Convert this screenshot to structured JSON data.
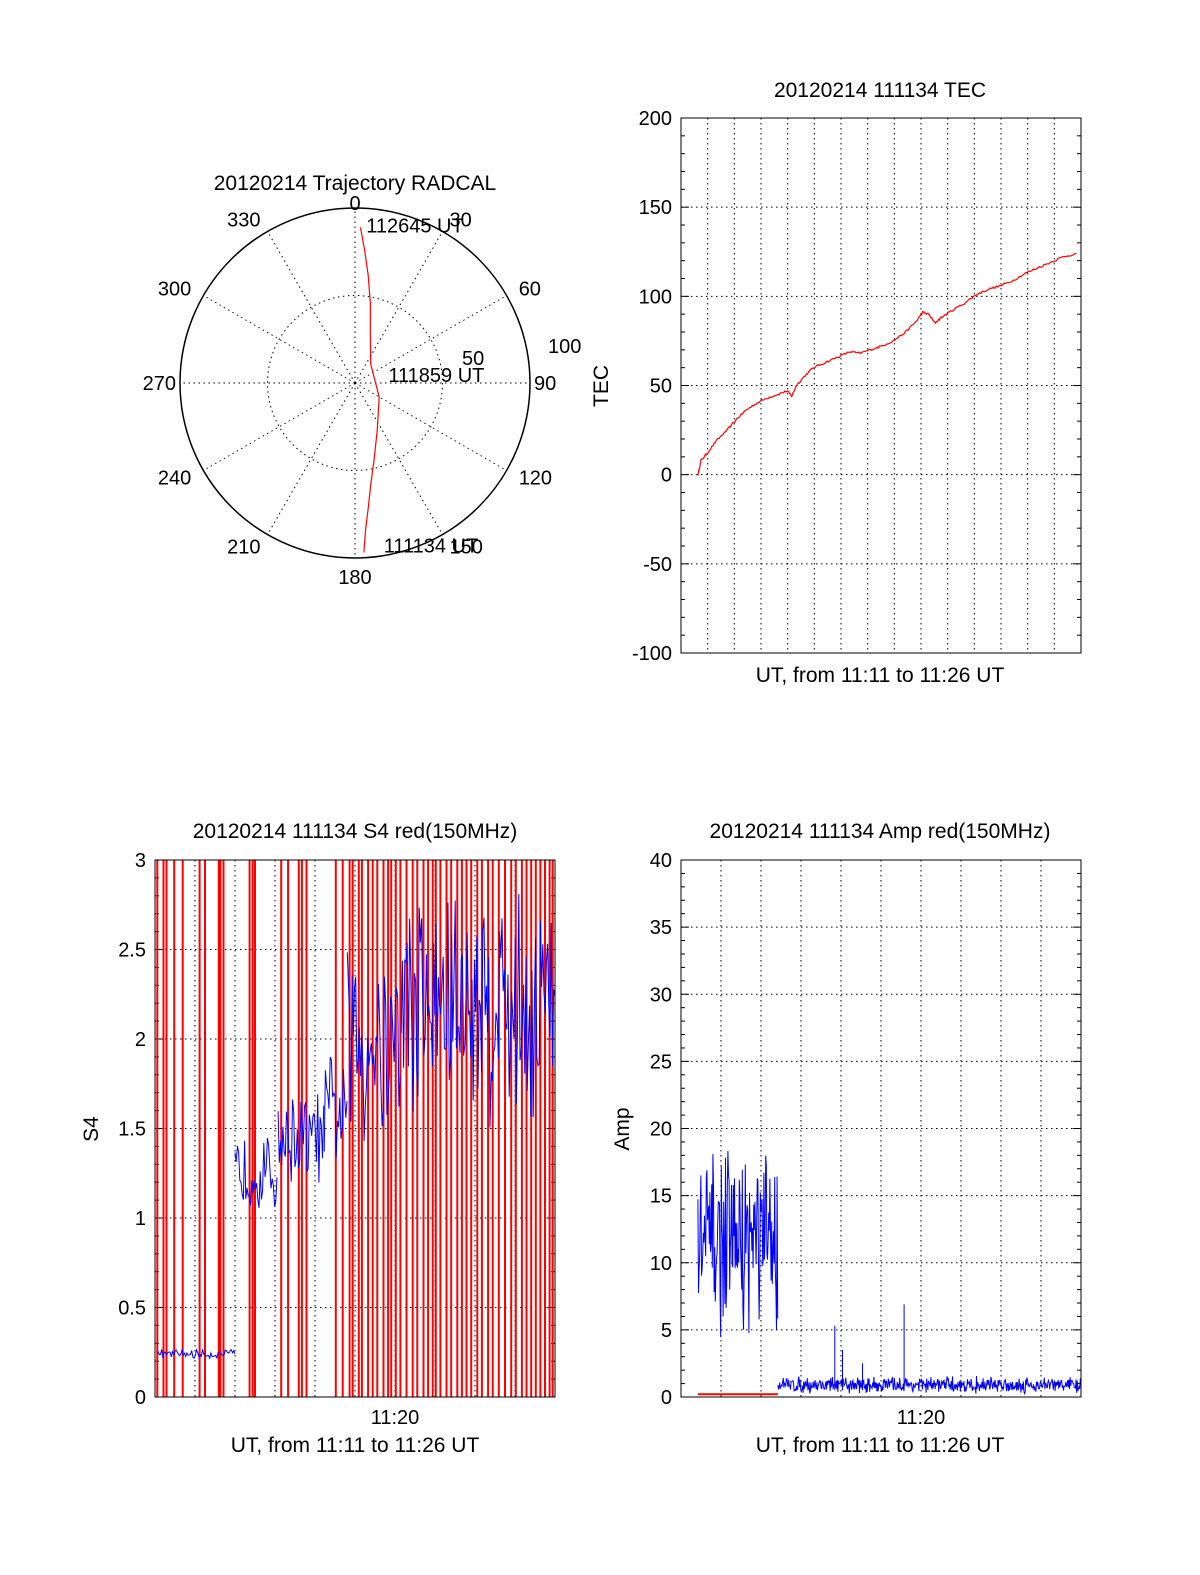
{
  "chart_data": [
    {
      "type": "polar",
      "title": "20120214 Trajectory RADCAL",
      "angle_labels": [
        "0",
        "30",
        "60",
        "90",
        "120",
        "150",
        "180",
        "210",
        "240",
        "270",
        "300",
        "330"
      ],
      "radius_labels": [
        "50",
        "100"
      ],
      "rlim": [
        0,
        100
      ],
      "grid": true,
      "trajectory_color": "#ff0000",
      "trajectory": [
        {
          "az": 177,
          "r": 97
        },
        {
          "az": 176,
          "r": 85
        },
        {
          "az": 174,
          "r": 72
        },
        {
          "az": 171,
          "r": 58
        },
        {
          "az": 166,
          "r": 45
        },
        {
          "az": 155,
          "r": 30
        },
        {
          "az": 120,
          "r": 16
        },
        {
          "az": 40,
          "r": 14
        },
        {
          "az": 17,
          "r": 30
        },
        {
          "az": 11,
          "r": 46
        },
        {
          "az": 7,
          "r": 62
        },
        {
          "az": 4,
          "r": 77
        },
        {
          "az": 2,
          "r": 89
        }
      ],
      "annotations": [
        {
          "text": "112645 UT",
          "az": 3,
          "r": 90
        },
        {
          "text": "111859 UT",
          "az": 75,
          "r": 18
        },
        {
          "text": "111134 UT",
          "az": 171,
          "r": 94
        }
      ]
    },
    {
      "type": "line",
      "title": "20120214 111134 TEC",
      "xlabel": "UT, from 11:11 to 11:26 UT",
      "ylabel": "TEC",
      "ylim": [
        -100,
        200
      ],
      "yticks": [
        "200",
        "150",
        "100",
        "50",
        "0",
        "-50",
        "-100"
      ],
      "xlim": [
        11.18,
        11.44
      ],
      "grid": true,
      "series": [
        {
          "color": "#ff0000",
          "points": [
            [
              11.1911,
              0
            ],
            [
              11.193,
              8
            ],
            [
              11.197,
              12
            ],
            [
              11.203,
              19
            ],
            [
              11.21,
              25
            ],
            [
              11.216,
              31
            ],
            [
              11.222,
              36
            ],
            [
              11.229,
              40
            ],
            [
              11.236,
              43
            ],
            [
              11.243,
              45
            ],
            [
              11.249,
              47
            ],
            [
              11.252,
              44
            ],
            [
              11.255,
              50
            ],
            [
              11.26,
              55
            ],
            [
              11.266,
              60
            ],
            [
              11.274,
              63
            ],
            [
              11.282,
              66
            ],
            [
              11.29,
              69
            ],
            [
              11.296,
              68
            ],
            [
              11.303,
              70
            ],
            [
              11.31,
              72
            ],
            [
              11.318,
              75
            ],
            [
              11.326,
              80
            ],
            [
              11.333,
              86
            ],
            [
              11.337,
              91
            ],
            [
              11.341,
              90
            ],
            [
              11.345,
              85
            ],
            [
              11.349,
              88
            ],
            [
              11.356,
              92
            ],
            [
              11.364,
              96
            ],
            [
              11.372,
              101
            ],
            [
              11.38,
              104
            ],
            [
              11.388,
              106
            ],
            [
              11.396,
              109
            ],
            [
              11.404,
              113
            ],
            [
              11.412,
              116
            ],
            [
              11.42,
              119
            ],
            [
              11.428,
              122
            ],
            [
              11.437,
              124
            ]
          ]
        }
      ]
    },
    {
      "type": "line",
      "title": "20120214 111134 S4 red(150MHz)",
      "xlabel": "UT, from 11:11 to 11:26 UT",
      "ylabel": "S4",
      "ylim": [
        0,
        3
      ],
      "yticks": [
        "3",
        "2.5",
        "2",
        "1.5",
        "1",
        "0.5",
        "0"
      ],
      "xticks": [
        {
          "label": "11:20",
          "x": 11.333
        }
      ],
      "xlim": [
        11.18,
        11.44
      ],
      "grid": true,
      "series": [
        {
          "color": "#ff0000",
          "spikes_x": [
            11.1815,
            11.1855,
            11.1875,
            11.1925,
            11.198,
            11.209,
            11.2125,
            11.2215,
            11.2225,
            11.2245,
            11.2415,
            11.2435,
            11.245,
            11.262,
            11.2665,
            11.2735,
            11.2755,
            11.2785,
            11.2975,
            11.302,
            11.3065,
            11.3085,
            11.3125,
            11.3145,
            11.3185,
            11.3215,
            11.3245,
            11.3285,
            11.3315,
            11.3335,
            11.3365,
            11.3395,
            11.3435,
            11.3475,
            11.3505,
            11.3545,
            11.3575,
            11.3605,
            11.3625,
            11.3655,
            11.3695,
            11.3725,
            11.3765,
            11.3795,
            11.3825,
            11.3855,
            11.3895,
            11.3925,
            11.3965,
            11.3995,
            11.4035,
            11.4075,
            11.4115,
            11.4145,
            11.4185,
            11.4215,
            11.4245,
            11.4275,
            11.4305,
            11.4335,
            11.4365,
            11.4385
          ]
        },
        {
          "color": "#0000ff",
          "segments": [
            {
              "x0": 11.182,
              "x1": 11.232,
              "mean": 0.24,
              "amp": 0.03
            },
            {
              "x0": 11.232,
              "x1": 11.26,
              "mean": 1.25,
              "amp": 0.25
            },
            {
              "x0": 11.26,
              "x1": 11.29,
              "mean": 1.45,
              "amp": 0.3
            },
            {
              "x0": 11.29,
              "x1": 11.305,
              "mean": 1.6,
              "amp": 0.35
            },
            {
              "x0": 11.305,
              "x1": 11.34,
              "mean": 2.0,
              "amp": 0.7
            },
            {
              "x0": 11.34,
              "x1": 11.44,
              "mean": 2.2,
              "amp": 0.8
            }
          ]
        }
      ]
    },
    {
      "type": "line",
      "title": "20120214 111134 Amp red(150MHz)",
      "xlabel": "UT, from 11:11 to 11:26 UT",
      "ylabel": "Amp",
      "ylim": [
        0,
        40
      ],
      "yticks": [
        "40",
        "35",
        "30",
        "25",
        "20",
        "15",
        "10",
        "5",
        "0"
      ],
      "xticks": [
        {
          "label": "11:20",
          "x": 11.333
        }
      ],
      "xlim": [
        11.18,
        11.44
      ],
      "grid": true,
      "series": [
        {
          "color": "#0000ff",
          "segments": [
            {
              "x0": 11.191,
              "x1": 11.243,
              "mean": 11.5,
              "amp": 7.5
            },
            {
              "x0": 11.243,
              "x1": 11.44,
              "mean": 0.9,
              "amp": 0.7
            }
          ],
          "peaks": [
            {
              "x": 11.28,
              "y": 5.3
            },
            {
              "x": 11.285,
              "y": 3.5
            },
            {
              "x": 11.298,
              "y": 2.5
            },
            {
              "x": 11.325,
              "y": 6.9
            }
          ]
        },
        {
          "color": "#ff0000",
          "segments": [
            {
              "x0": 11.191,
              "x1": 11.243,
              "mean": 0.2,
              "amp": 0.05
            }
          ]
        }
      ]
    }
  ]
}
